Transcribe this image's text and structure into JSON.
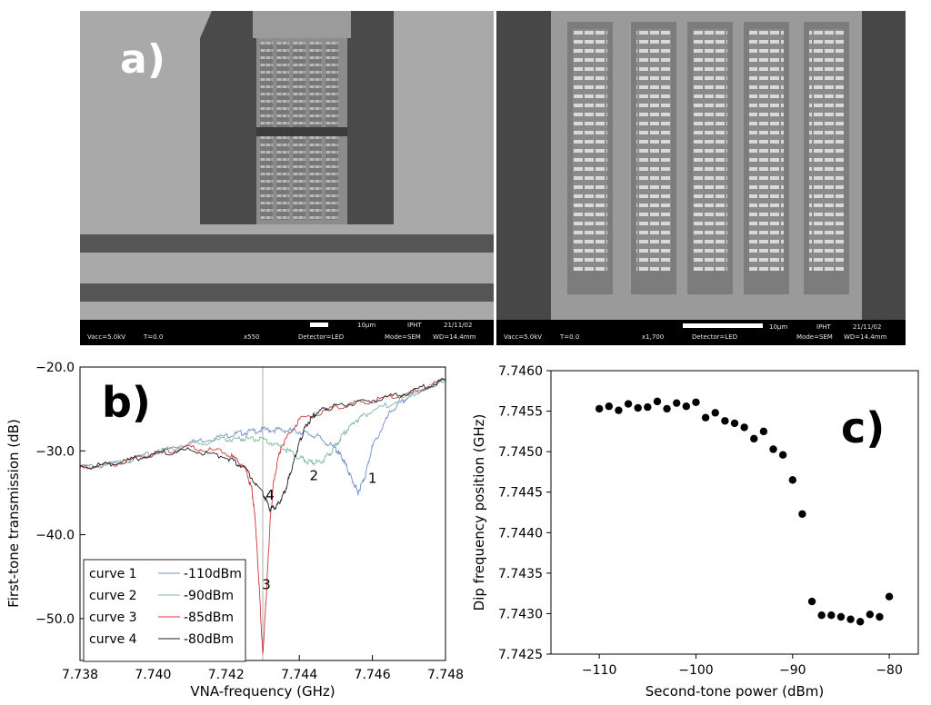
{
  "panels": {
    "a": {
      "label": "a)"
    },
    "b": {
      "label": "b)"
    },
    "c": {
      "label": "c)"
    }
  },
  "sem_left": {
    "info": [
      "Vacc=5.0kV",
      "T=0.0",
      "x550",
      "Detector=LED",
      "Mode=SEM",
      "WD=14.4mm"
    ],
    "scale": "10μm",
    "date": "21/11/02",
    "org": "IPHT"
  },
  "sem_right": {
    "info": [
      "Vacc=5.0kV",
      "T=0.0",
      "x1,700",
      "Detector=LED",
      "Mode=SEM",
      "WD=14.4mm"
    ],
    "scale": "10μm",
    "date": "21/11/02",
    "org": "IPHT"
  },
  "chart_data": [
    {
      "type": "line",
      "xlabel": "VNA-frequency (GHz)",
      "ylabel": "First-tone transmission (dB)",
      "xlim": [
        7.738,
        7.748
      ],
      "ylim": [
        -55,
        -20
      ],
      "xticks": [
        7.738,
        7.74,
        7.742,
        7.744,
        7.746,
        7.748
      ],
      "xtick_labels": [
        "7.738",
        "7.740",
        "7.742",
        "7.744",
        "7.746",
        "7.748"
      ],
      "yticks": [
        -50,
        -40,
        -30,
        -20
      ],
      "ytick_labels": [
        "−50.0",
        "−40.0",
        "−30.0",
        "−20.0"
      ],
      "legend": {
        "placement": "bottom-left",
        "entries": [
          {
            "name": "curve 1",
            "value": "-110dBm"
          },
          {
            "name": "curve 2",
            "value": "-90dBm"
          },
          {
            "name": "curve 3",
            "value": "-85dBm"
          },
          {
            "name": "curve 4",
            "value": "-80dBm"
          }
        ]
      },
      "annotations": [
        {
          "text": "1",
          "x": 7.746,
          "y": -33.8
        },
        {
          "text": "2",
          "x": 7.7444,
          "y": -33.5
        },
        {
          "text": "3",
          "x": 7.7431,
          "y": -46.5
        },
        {
          "text": "4",
          "x": 7.7432,
          "y": -35.8
        }
      ],
      "vline_x": 7.743,
      "series": [
        {
          "name": "curve 1",
          "color": "#6f8fc9",
          "x": [
            7.738,
            7.739,
            7.74,
            7.741,
            7.742,
            7.7425,
            7.743,
            7.7435,
            7.744,
            7.7445,
            7.745,
            7.7452,
            7.7454,
            7.7456,
            7.7458,
            7.746,
            7.7465,
            7.747,
            7.748
          ],
          "y": [
            -32.0,
            -31.5,
            -30.3,
            -29.0,
            -28.2,
            -27.8,
            -27.5,
            -27.5,
            -27.7,
            -28.3,
            -29.8,
            -31.0,
            -33.0,
            -35.0,
            -33.0,
            -29.5,
            -25.3,
            -23.5,
            -21.5
          ]
        },
        {
          "name": "curve 2",
          "color": "#7fb8a0",
          "x": [
            7.738,
            7.739,
            7.74,
            7.741,
            7.742,
            7.7425,
            7.743,
            7.7435,
            7.744,
            7.7443,
            7.7446,
            7.7449,
            7.7452,
            7.7455,
            7.746,
            7.747,
            7.748
          ],
          "y": [
            -32.0,
            -31.5,
            -30.3,
            -29.2,
            -28.6,
            -28.5,
            -28.7,
            -29.5,
            -30.8,
            -31.4,
            -31.3,
            -30.0,
            -28.0,
            -26.5,
            -25.2,
            -23.5,
            -21.5
          ]
        },
        {
          "name": "curve 3",
          "color": "#cc3b3b",
          "x": [
            7.738,
            7.739,
            7.74,
            7.741,
            7.742,
            7.7425,
            7.7427,
            7.7428,
            7.7429,
            7.743,
            7.7431,
            7.7432,
            7.7433,
            7.7435,
            7.744,
            7.745,
            7.746,
            7.747,
            7.748
          ],
          "y": [
            -32.0,
            -31.5,
            -30.4,
            -29.6,
            -30.2,
            -31.8,
            -34.5,
            -38.5,
            -46.0,
            -54.5,
            -47.0,
            -38.5,
            -33.5,
            -29.5,
            -26.3,
            -24.8,
            -24.0,
            -23.2,
            -21.5
          ]
        },
        {
          "name": "curve 4",
          "color": "#222222",
          "x": [
            7.738,
            7.739,
            7.74,
            7.741,
            7.742,
            7.7425,
            7.743,
            7.7432,
            7.7434,
            7.7436,
            7.7438,
            7.744,
            7.7442,
            7.7445,
            7.745,
            7.746,
            7.747,
            7.748
          ],
          "y": [
            -32.0,
            -31.5,
            -30.4,
            -29.9,
            -30.7,
            -32.0,
            -35.0,
            -37.0,
            -36.5,
            -35.0,
            -32.0,
            -29.0,
            -26.8,
            -25.3,
            -24.6,
            -24.0,
            -23.0,
            -21.5
          ]
        }
      ]
    },
    {
      "type": "scatter",
      "xlabel": "Second-tone power (dBm)",
      "ylabel": "Dip frequency position (GHz)",
      "xlim": [
        -115,
        -77
      ],
      "ylim": [
        7.7425,
        7.746
      ],
      "xticks": [
        -110,
        -100,
        -90,
        -80
      ],
      "xtick_labels": [
        "−110",
        "−100",
        "−90",
        "−80"
      ],
      "yticks": [
        7.7425,
        7.743,
        7.7435,
        7.744,
        7.7445,
        7.745,
        7.7455,
        7.746
      ],
      "ytick_labels": [
        "7.7425",
        "7.7430",
        "7.7435",
        "7.7440",
        "7.7445",
        "7.7450",
        "7.7455",
        "7.7460"
      ],
      "color": "#000000",
      "x": [
        -110,
        -109,
        -108,
        -107,
        -106,
        -105,
        -104,
        -103,
        -102,
        -101,
        -100,
        -99,
        -98,
        -97,
        -96,
        -95,
        -94,
        -93,
        -92,
        -91,
        -90,
        -89,
        -88,
        -87,
        -86,
        -85,
        -84,
        -83,
        -82,
        -81,
        -80
      ],
      "y": [
        7.74553,
        7.74556,
        7.74551,
        7.74559,
        7.74554,
        7.74555,
        7.74562,
        7.74553,
        7.7456,
        7.74556,
        7.74561,
        7.74542,
        7.74548,
        7.74538,
        7.74535,
        7.7453,
        7.74516,
        7.74525,
        7.74503,
        7.74496,
        7.74465,
        7.74423,
        7.74315,
        7.74298,
        7.74298,
        7.74296,
        7.74293,
        7.7429,
        7.74299,
        7.74296,
        7.74321
      ]
    }
  ]
}
